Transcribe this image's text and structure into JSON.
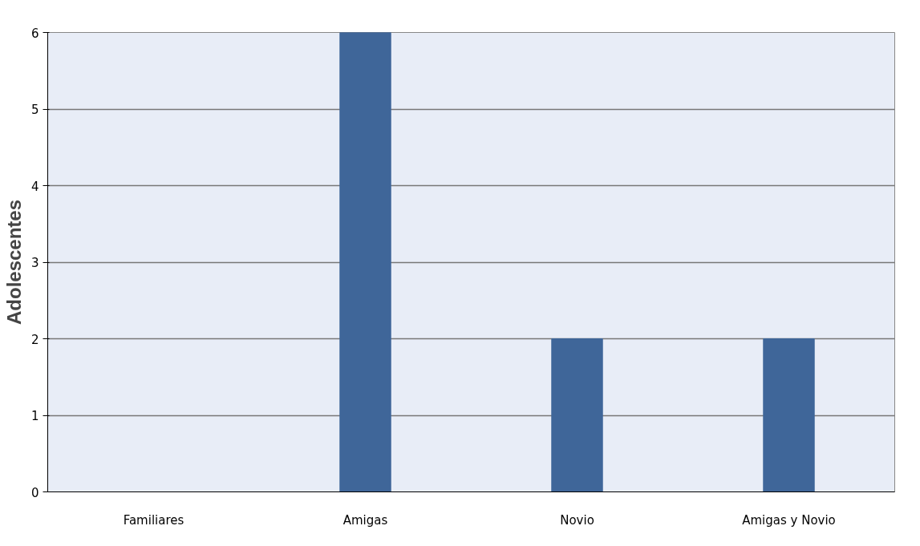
{
  "chart_data": {
    "type": "bar",
    "ylabel": "Adolescentes",
    "categories": [
      "Familiares",
      "Amigas",
      "Novio",
      "Amigas y Novio"
    ],
    "values": [
      0,
      6,
      2,
      2
    ],
    "color": "#3f6699",
    "ylim": [
      0,
      6
    ],
    "yticks": [
      0,
      1,
      2,
      3,
      4,
      5,
      6
    ],
    "grid": "y"
  }
}
